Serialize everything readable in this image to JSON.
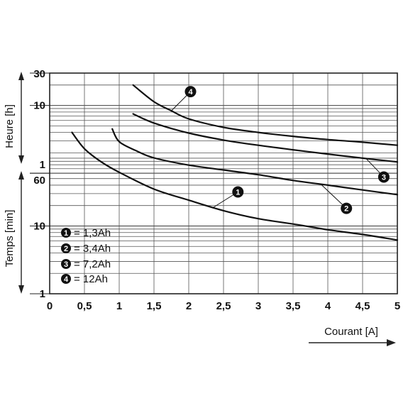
{
  "chart_data": {
    "type": "line",
    "x_axis": {
      "label": "Courant [A]",
      "range": [
        0,
        5
      ],
      "ticks": [
        "0",
        "0,5",
        "1",
        "1,5",
        "2",
        "2,5",
        "3",
        "3,5",
        "4",
        "4,5",
        "5"
      ]
    },
    "y_axis": {
      "scale": "log",
      "labels": [
        "Heure [h]",
        "Temps [min]"
      ],
      "range_minutes": [
        1,
        1800
      ],
      "ticks": [
        {
          "label": "30",
          "minutes": 1800
        },
        {
          "label": "10",
          "minutes": 600
        },
        {
          "label": "1",
          "minutes": 60
        },
        {
          "label": "60",
          "minutes": 60
        },
        {
          "label": "10",
          "minutes": 10
        },
        {
          "label": "1",
          "minutes": 1
        }
      ]
    },
    "grid": true,
    "legend": {
      "position": "bottom-left",
      "entries": [
        {
          "num": "1",
          "text": "= 1,3Ah"
        },
        {
          "num": "2",
          "text": "= 3,4Ah"
        },
        {
          "num": "3",
          "text": "= 7,2Ah"
        },
        {
          "num": "4",
          "text": "= 12Ah"
        }
      ]
    },
    "series": [
      {
        "name": "1,3Ah",
        "marker": "1",
        "unit": "minutes",
        "x": [
          0.32,
          0.5,
          0.75,
          1.0,
          1.5,
          2.0,
          2.5,
          3.0,
          3.5,
          4.0,
          4.5,
          5.0
        ],
        "y": [
          240,
          138,
          87,
          62,
          35,
          24,
          16.8,
          12.8,
          10.7,
          8.8,
          7.5,
          6.2
        ]
      },
      {
        "name": "3,4Ah",
        "marker": "2",
        "unit": "minutes",
        "x": [
          0.9,
          1.0,
          1.25,
          1.5,
          2.0,
          2.5,
          3.0,
          3.5,
          4.0,
          4.5,
          5.0
        ],
        "y": [
          270,
          175,
          128,
          101,
          79,
          67,
          57,
          47,
          40,
          34,
          29
        ]
      },
      {
        "name": "7,2Ah",
        "marker": "3",
        "unit": "minutes",
        "x": [
          1.2,
          1.5,
          2.0,
          2.5,
          3.0,
          3.5,
          4.0,
          4.5,
          5.0
        ],
        "y": [
          450,
          330,
          235,
          185,
          155,
          133,
          115,
          100,
          88
        ]
      },
      {
        "name": "12Ah",
        "marker": "4",
        "unit": "minutes",
        "x": [
          1.2,
          1.5,
          1.75,
          2.0,
          2.5,
          3.0,
          3.5,
          4.0,
          4.5,
          5.0
        ],
        "y": [
          1200,
          680,
          500,
          380,
          285,
          240,
          210,
          188,
          172,
          155
        ]
      }
    ]
  }
}
